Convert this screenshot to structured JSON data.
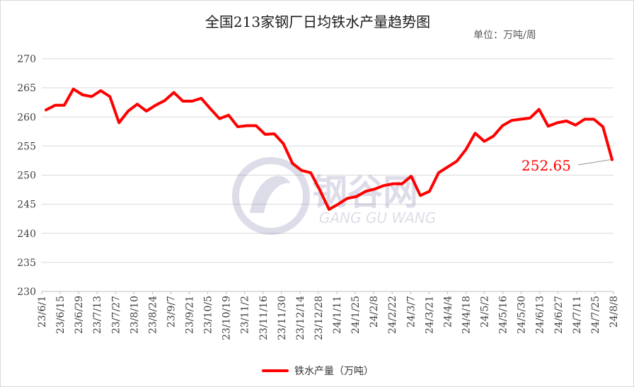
{
  "chart_data": {
    "type": "line",
    "title": "全国213家钢厂日均铁水产量趋势图",
    "unit_label": "单位：万吨/周",
    "y_ticks": [
      "270",
      "265",
      "260",
      "255",
      "250",
      "245",
      "240",
      "235",
      "230"
    ],
    "ylim": [
      230,
      270
    ],
    "x_tick_labels": [
      "23/6/1",
      "23/6/15",
      "23/6/29",
      "23/7/13",
      "23/7/27",
      "23/8/10",
      "23/8/24",
      "23/9/7",
      "23/9/21",
      "23/10/5",
      "23/10/19",
      "23/11/2",
      "23/11/16",
      "23/11/30",
      "23/12/14",
      "23/12/28",
      "24/1/11",
      "24/1/25",
      "24/2/8",
      "24/2/22",
      "24/3/7",
      "24/3/21",
      "24/4/4",
      "24/4/18",
      "24/5/2",
      "24/5/16",
      "24/5/30",
      "24/6/13",
      "24/6/27",
      "24/7/11",
      "24/7/25",
      "24/8/8"
    ],
    "series": [
      {
        "name": "铁水产量（万吨）",
        "color": "#ff0000",
        "values": [
          261.2,
          262.0,
          262.0,
          264.8,
          263.8,
          263.5,
          264.5,
          263.5,
          259.0,
          261.0,
          262.2,
          261.0,
          262.0,
          262.8,
          264.2,
          262.7,
          262.7,
          263.2,
          261.4,
          259.7,
          260.3,
          258.3,
          258.5,
          258.5,
          257.0,
          257.1,
          255.4,
          252.0,
          250.8,
          250.4,
          247.4,
          244.1,
          245.0,
          246.0,
          246.3,
          247.2,
          247.6,
          248.2,
          248.5,
          248.5,
          249.8,
          246.5,
          247.2,
          250.4,
          251.4,
          252.4,
          254.4,
          257.2,
          255.8,
          256.7,
          258.5,
          259.4,
          259.6,
          259.8,
          261.3,
          258.4,
          259.0,
          259.3,
          258.6,
          259.6,
          259.6,
          258.3,
          252.65
        ]
      }
    ],
    "annotation": {
      "text": "252.65",
      "color": "#ff0000"
    },
    "watermark": {
      "cn": "钢谷网",
      "en": "GANG GU WANG"
    },
    "grid": true,
    "legend_position": "bottom"
  }
}
